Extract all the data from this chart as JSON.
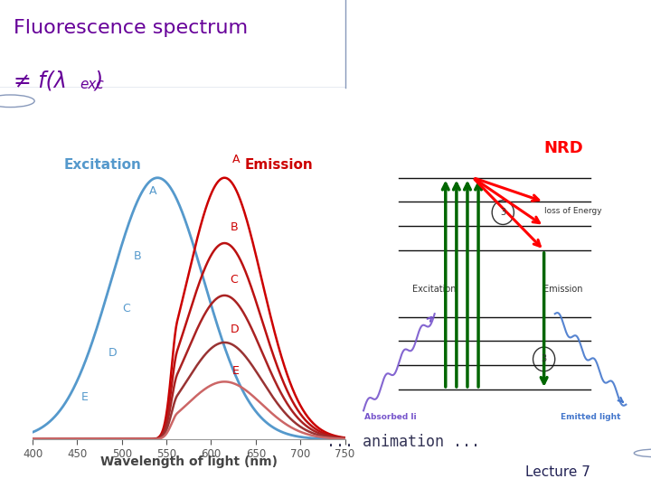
{
  "title_line1": "Fluorescence spectrum",
  "title_line2": "≠ f(λ",
  "title_line2_sub": "exc",
  "title_line2_end": ")",
  "title_color": "#660099",
  "title_bg": "#ccd5e8",
  "slide_bg": "#ffffff",
  "excitation_color": "#5599cc",
  "emission_color_dark": "#cc0000",
  "emission_colors": [
    "#cc0000",
    "#bb1111",
    "#aa2222",
    "#993333",
    "#cc6666"
  ],
  "excitation_peak": 540,
  "excitation_sigma": 52,
  "emission_peak": 615,
  "emission_sigma": 42,
  "emission_amplitudes": [
    1.0,
    0.75,
    0.55,
    0.37,
    0.22
  ],
  "xmin": 400,
  "xmax": 750,
  "xticks": [
    400,
    450,
    500,
    550,
    600,
    650,
    700,
    750
  ],
  "xlabel": "Wavelength of light (nm)",
  "excitation_label": "Excitation",
  "emission_label": "Emission",
  "curve_labels_exc": [
    "A",
    "B",
    "C",
    "D",
    "E"
  ],
  "curve_labels_em": [
    "A",
    "B",
    "C",
    "D",
    "E"
  ],
  "animation_text": "... animation ...",
  "lecture_text": "Lecture 7",
  "lecture_bg": "#c0cce0",
  "nrd_label": "NRD",
  "loss_label": "loss of Energy",
  "excitation_axis_label": "Excitation",
  "emission_axis_label": "Emission",
  "absorbed_label": "Absorbed li",
  "emitted_label": "Emitted light",
  "circled3_label": "3"
}
